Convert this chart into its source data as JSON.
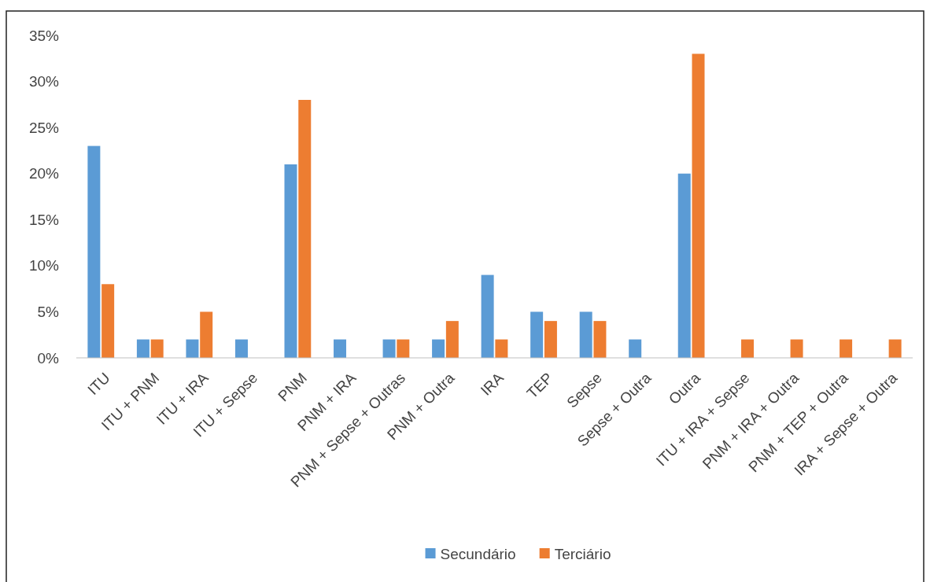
{
  "chart_data": {
    "type": "bar",
    "categories": [
      "ITU",
      "ITU + PNM",
      "ITU + IRA",
      "ITU + Sepse",
      "PNM",
      "PNM + IRA",
      "PNM + Sepse + Outras",
      "PNM + Outra",
      "IRA",
      "TEP",
      "Sepse",
      "Sepse + Outra",
      "Outra",
      "ITU + IRA + Sepse",
      "PNM + IRA + Outra",
      "PNM + TEP + Outra",
      "IRA + Sepse + Outra"
    ],
    "series": [
      {
        "name": "Secundário",
        "color": "#5b9bd5",
        "values": [
          23,
          2,
          2,
          2,
          21,
          2,
          2,
          2,
          9,
          5,
          5,
          2,
          20,
          0,
          0,
          0,
          0
        ]
      },
      {
        "name": "Terciário",
        "color": "#ed7d31",
        "values": [
          8,
          2,
          5,
          0,
          28,
          0,
          2,
          4,
          2,
          4,
          4,
          0,
          33,
          2,
          2,
          2,
          2
        ]
      }
    ],
    "ylim": [
      0,
      35
    ],
    "yticks": [
      {
        "value": 0,
        "label": "0%"
      },
      {
        "value": 5,
        "label": "5%"
      },
      {
        "value": 10,
        "label": "10%"
      },
      {
        "value": 15,
        "label": "15%"
      },
      {
        "value": 20,
        "label": "20%"
      },
      {
        "value": 25,
        "label": "25%"
      },
      {
        "value": 30,
        "label": "30%"
      },
      {
        "value": 35,
        "label": "35%"
      }
    ],
    "legend": "bottom"
  }
}
